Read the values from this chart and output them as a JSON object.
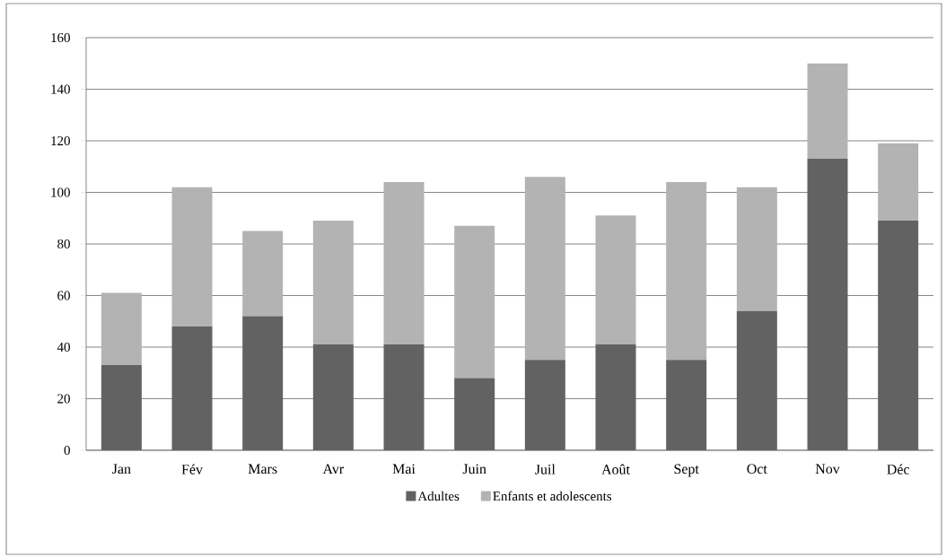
{
  "chart_data": {
    "type": "bar",
    "stacked": true,
    "categories": [
      "Jan",
      "Fév",
      "Mars",
      "Avr",
      "Mai",
      "Juin",
      "Juil",
      "Août",
      "Sept",
      "Oct",
      "Nov",
      "Déc"
    ],
    "series": [
      {
        "name": "Adultes",
        "color": "#626262",
        "values": [
          33,
          48,
          52,
          41,
          41,
          28,
          35,
          41,
          35,
          54,
          113,
          89
        ]
      },
      {
        "name": "Enfants et adolescents",
        "color": "#b3b3b3",
        "values": [
          28,
          54,
          33,
          48,
          63,
          59,
          71,
          50,
          69,
          48,
          37,
          30
        ]
      }
    ],
    "ylim": [
      0,
      160
    ],
    "yticks": [
      0,
      20,
      40,
      60,
      80,
      100,
      120,
      140,
      160
    ],
    "grid": "y",
    "legend": "bottom"
  }
}
